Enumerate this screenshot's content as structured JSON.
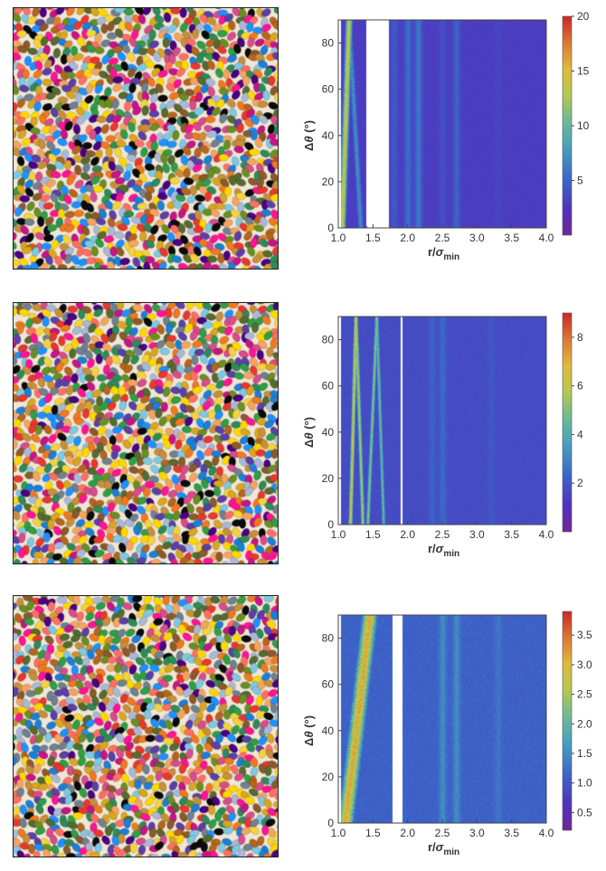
{
  "figure": {
    "ylabel_prefix": "Δ",
    "ylabel_theta": "θ",
    "ylabel_unit": " (°)",
    "xlabel_main": "r/",
    "xlabel_sigma": "σ",
    "xlabel_sub": "min"
  },
  "chart_data": [
    {
      "type": "heatmap",
      "panel": "top",
      "xlim": [
        1.0,
        4.0
      ],
      "ylim": [
        0,
        90
      ],
      "xticks": [
        "1.0",
        "1.5",
        "2.0",
        "2.5",
        "3.0",
        "3.5",
        "4.0"
      ],
      "yticks": [
        "0",
        "20",
        "40",
        "60",
        "80"
      ],
      "colorbar_ticks": [
        "20",
        "15",
        "10",
        "5"
      ],
      "colorbar_values": [
        20,
        15,
        10,
        5
      ],
      "colorbar_range": [
        0,
        20
      ],
      "ridges": [
        {
          "r_at_0": 1.05,
          "r_at_90": 1.15,
          "peak": 14,
          "width": 0.05
        },
        {
          "r_at_0": 1.32,
          "r_at_90": 1.15,
          "peak": 7,
          "width": 0.05
        }
      ],
      "empty_region": [
        1.4,
        1.72
      ],
      "bands": [
        {
          "r": 1.8,
          "v": 4.5
        },
        {
          "r": 2.0,
          "v": 5.5
        },
        {
          "r": 2.15,
          "v": 6
        },
        {
          "r": 2.5,
          "v": 4
        },
        {
          "r": 2.7,
          "v": 5
        },
        {
          "r": 3.3,
          "v": 3.5
        }
      ],
      "baseline": 3
    },
    {
      "type": "heatmap",
      "panel": "middle",
      "xlim": [
        1.0,
        4.0
      ],
      "ylim": [
        0,
        90
      ],
      "xticks": [
        "1.0",
        "1.5",
        "2.0",
        "2.5",
        "3.0",
        "3.5",
        "4.0"
      ],
      "yticks": [
        "0",
        "20",
        "40",
        "60",
        "80"
      ],
      "colorbar_ticks": [
        "8",
        "6",
        "4",
        "2"
      ],
      "colorbar_values": [
        8,
        6,
        4,
        2
      ],
      "colorbar_range": [
        0,
        9
      ],
      "ridges": [
        {
          "r_at_0": 1.17,
          "r_at_90": 1.25,
          "peak": 6.5,
          "width": 0.03
        },
        {
          "r_at_0": 1.35,
          "r_at_90": 1.25,
          "peak": 5.5,
          "width": 0.03
        },
        {
          "r_at_0": 1.42,
          "r_at_90": 1.55,
          "peak": 5,
          "width": 0.03
        },
        {
          "r_at_0": 1.65,
          "r_at_90": 1.55,
          "peak": 4.5,
          "width": 0.03
        }
      ],
      "empty_region": [
        1.9,
        1.92
      ],
      "bands": [
        {
          "r": 2.35,
          "v": 2.2
        },
        {
          "r": 2.5,
          "v": 2.4
        },
        {
          "r": 3.2,
          "v": 2.0
        }
      ],
      "baseline": 1.7
    },
    {
      "type": "heatmap",
      "panel": "bottom",
      "xlim": [
        1.0,
        4.0
      ],
      "ylim": [
        0,
        90
      ],
      "xticks": [
        "1.0",
        "1.5",
        "2.0",
        "2.5",
        "3.0",
        "3.5",
        "4.0"
      ],
      "yticks": [
        "0",
        "20",
        "40",
        "60",
        "80"
      ],
      "colorbar_ticks": [
        "3.5",
        "3.0",
        "2.5",
        "2.0",
        "1.5",
        "1.0",
        "0.5"
      ],
      "colorbar_values": [
        3.5,
        3.0,
        2.5,
        2.0,
        1.5,
        1.0,
        0.5
      ],
      "colorbar_range": [
        0.2,
        3.9
      ],
      "ridges": [
        {
          "r_at_0": 1.1,
          "r_at_90": 1.45,
          "peak": 3.0,
          "width": 0.12
        }
      ],
      "empty_region": [
        1.78,
        1.92
      ],
      "bands": [
        {
          "r": 2.5,
          "v": 1.5
        },
        {
          "r": 2.7,
          "v": 1.5
        },
        {
          "r": 3.3,
          "v": 1.3
        }
      ],
      "baseline": 1.1
    }
  ]
}
